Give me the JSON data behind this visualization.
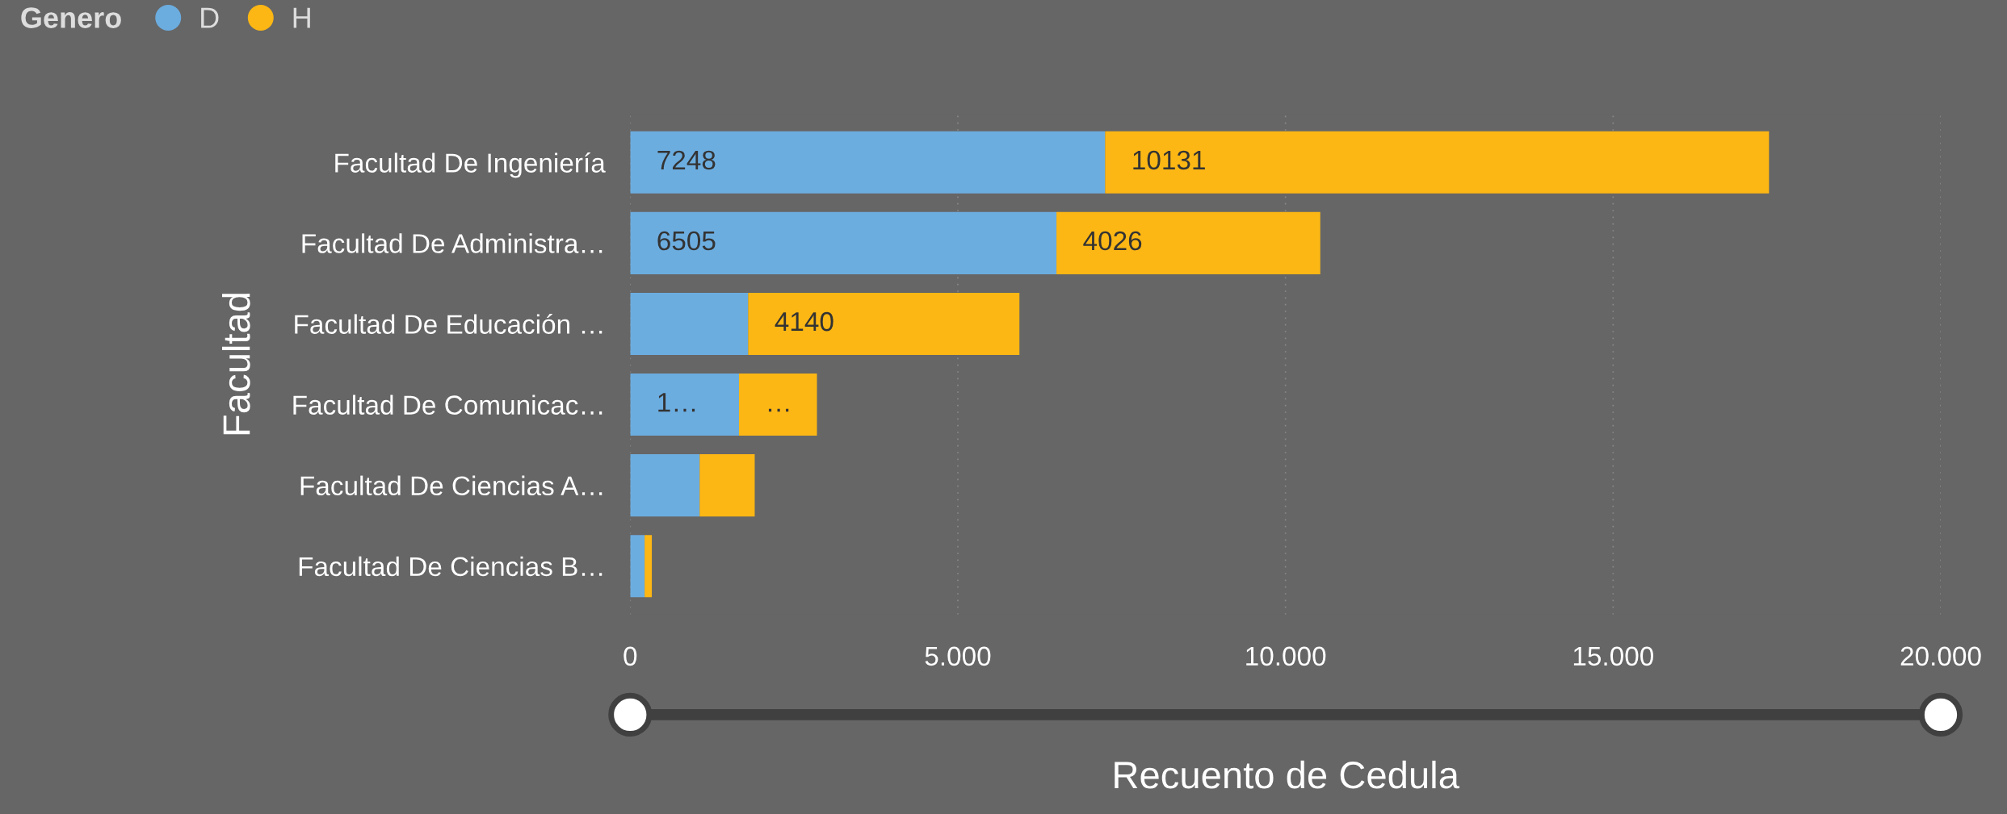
{
  "chart_data": {
    "type": "bar",
    "orientation": "horizontal",
    "stacked": true,
    "xlabel": "Recuento de Cedula",
    "ylabel": "Facultad",
    "legend_title": "Genero",
    "legend": "top left",
    "grid": "x",
    "categories": [
      "Facultad De Ingeniería",
      "Facultad De Administra…",
      "Facultad De Educación …",
      "Facultad De Comunicac…",
      "Facultad De Ciencias A…",
      "Facultad De Ciencias B…"
    ],
    "series": [
      {
        "name": "D",
        "color": "#6cade0",
        "values": [
          7248,
          6505,
          1800,
          1660,
          1060,
          220
        ],
        "value_labels": [
          "7248",
          "6505",
          null,
          "1…",
          null,
          null
        ]
      },
      {
        "name": "H",
        "color": "#fdb714",
        "values": [
          10131,
          4026,
          4140,
          1190,
          840,
          110
        ],
        "value_labels": [
          "10131",
          "4026",
          "4140",
          "…",
          null,
          null
        ]
      }
    ],
    "xlim": [
      0,
      20000
    ],
    "xticks": [
      0,
      {
        "value": 5000,
        "label": "5.000"
      },
      {
        "value": 10000,
        "label": "10.000"
      },
      {
        "value": 15000,
        "label": "15.000"
      },
      {
        "value": 20000,
        "label": "20.000"
      }
    ]
  }
}
